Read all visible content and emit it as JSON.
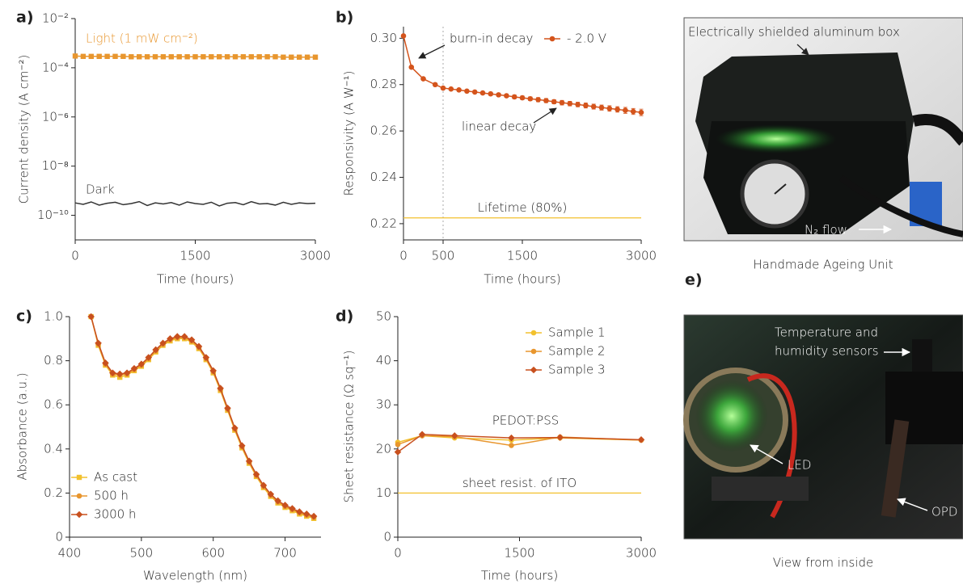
{
  "chart_data": [
    {
      "type": "line",
      "label": "a)",
      "xlabel": "Time (hours)",
      "ylabel": "Current density (A cm⁻²)",
      "ylog": true,
      "xlim": [
        0,
        3000
      ],
      "xticks": [
        0,
        1500,
        3000
      ],
      "ylim": [
        1e-11,
        0.01
      ],
      "yticks": [
        {
          "value": 0.01,
          "label": "10⁻²"
        },
        {
          "value": 0.0001,
          "label": "10⁻⁴"
        },
        {
          "value": 1e-06,
          "label": "10⁻⁶"
        },
        {
          "value": 1e-08,
          "label": "10⁻⁸"
        },
        {
          "value": 1e-10,
          "label": "10⁻¹⁰"
        }
      ],
      "x": [
        0,
        100,
        200,
        300,
        400,
        500,
        600,
        700,
        800,
        900,
        1000,
        1100,
        1200,
        1300,
        1400,
        1500,
        1600,
        1700,
        1800,
        1900,
        2000,
        2100,
        2200,
        2300,
        2400,
        2500,
        2600,
        2700,
        2800,
        2900,
        3000
      ],
      "series": [
        {
          "name": "Light (1 mW cm⁻²)",
          "color": "#e8962e",
          "marker": "square",
          "values": [
            0.0003,
            0.00029,
            0.00029,
            0.00029,
            0.00029,
            0.00029,
            0.00029,
            0.00028,
            0.00028,
            0.00028,
            0.00028,
            0.00028,
            0.00028,
            0.00028,
            0.00028,
            0.00028,
            0.00028,
            0.00028,
            0.00028,
            0.00028,
            0.00028,
            0.00028,
            0.00028,
            0.00028,
            0.00028,
            0.00028,
            0.00027,
            0.00027,
            0.00027,
            0.00027,
            0.00027
          ]
        },
        {
          "name": "Dark",
          "color": "#333333",
          "marker": "none",
          "values": [
            3.2e-10,
            2.8e-10,
            3.5e-10,
            2.6e-10,
            3.1e-10,
            3.4e-10,
            2.7e-10,
            3e-10,
            3.6e-10,
            2.5e-10,
            3.2e-10,
            2.9e-10,
            3.3e-10,
            2.6e-10,
            3.5e-10,
            3e-10,
            2.8e-10,
            3.4e-10,
            2.4e-10,
            3.1e-10,
            3.3e-10,
            2.7e-10,
            3.6e-10,
            2.9e-10,
            3e-10,
            2.6e-10,
            3.4e-10,
            2.8e-10,
            3.2e-10,
            3e-10,
            3.1e-10
          ]
        }
      ]
    },
    {
      "type": "line",
      "label": "b)",
      "xlabel": "Time (hours)",
      "ylabel": "Responsivity (A W⁻¹)",
      "legend": "upper right",
      "xlim": [
        0,
        3000
      ],
      "xticks": [
        0,
        500,
        1500,
        3000
      ],
      "ylim": [
        0.213,
        0.305
      ],
      "yticks": [
        0.22,
        0.24,
        0.26,
        0.28,
        {
          "value": 0.3,
          "label": "0.30"
        }
      ],
      "x": [
        0,
        100,
        250,
        400,
        500,
        600,
        700,
        800,
        900,
        1000,
        1100,
        1200,
        1300,
        1400,
        1500,
        1600,
        1700,
        1800,
        1900,
        2000,
        2100,
        2200,
        2300,
        2400,
        2500,
        2600,
        2700,
        2800,
        2900,
        3000
      ],
      "series": [
        {
          "name": "- 2.0 V",
          "color": "#d4541c",
          "marker": "circle",
          "values": [
            0.301,
            0.2875,
            0.2825,
            0.28,
            0.2785,
            0.2781,
            0.2777,
            0.2772,
            0.2768,
            0.2764,
            0.276,
            0.2756,
            0.2752,
            0.2747,
            0.2743,
            0.2739,
            0.2735,
            0.2731,
            0.2726,
            0.2722,
            0.2718,
            0.2714,
            0.271,
            0.2705,
            0.2701,
            0.2697,
            0.2693,
            0.2689,
            0.2684,
            0.268
          ],
          "errors": [
            0.0003,
            0.0003,
            0.0004,
            0.0004,
            0.0005,
            0.0005,
            0.0005,
            0.0006,
            0.0006,
            0.0006,
            0.0007,
            0.0007,
            0.0007,
            0.0008,
            0.0008,
            0.0008,
            0.0009,
            0.0009,
            0.0009,
            0.001,
            0.001,
            0.001,
            0.0011,
            0.0011,
            0.0011,
            0.0012,
            0.0012,
            0.0013,
            0.0013,
            0.0014
          ]
        }
      ],
      "vlines": [
        500
      ],
      "hlines": [
        {
          "value": 0.2225,
          "label": "Lifetime (80%)",
          "color": "#f2c12e"
        }
      ],
      "annotations": [
        {
          "text": "burn-in decay",
          "color": "#222222"
        },
        {
          "text": "linear decay",
          "color": "#222222"
        }
      ]
    },
    {
      "type": "line",
      "label": "c)",
      "xlabel": "Wavelength (nm)",
      "ylabel": "Absorbance (a.u.)",
      "legend": "lower left",
      "xlim": [
        400,
        750
      ],
      "xticks": [
        400,
        500,
        600,
        700
      ],
      "ylim": [
        0,
        1
      ],
      "yticks": [
        0,
        0.2,
        0.4,
        0.6,
        0.8,
        {
          "value": 1,
          "label": "1.0"
        }
      ],
      "x": [
        430,
        440,
        450,
        460,
        470,
        480,
        490,
        500,
        510,
        520,
        530,
        540,
        550,
        560,
        570,
        580,
        590,
        600,
        610,
        620,
        630,
        640,
        650,
        660,
        670,
        680,
        690,
        700,
        710,
        720,
        730,
        740
      ],
      "series": [
        {
          "name": "As cast",
          "color": "#f2c12e",
          "marker": "square",
          "values": [
            1.0,
            0.87,
            0.78,
            0.735,
            0.725,
            0.735,
            0.755,
            0.775,
            0.805,
            0.84,
            0.87,
            0.89,
            0.9,
            0.9,
            0.885,
            0.855,
            0.805,
            0.745,
            0.665,
            0.575,
            0.485,
            0.405,
            0.335,
            0.275,
            0.225,
            0.185,
            0.155,
            0.135,
            0.12,
            0.105,
            0.095,
            0.085
          ]
        },
        {
          "name": "500 h",
          "color": "#e8962e",
          "marker": "circle",
          "values": [
            1.0,
            0.875,
            0.785,
            0.74,
            0.735,
            0.74,
            0.76,
            0.78,
            0.81,
            0.845,
            0.875,
            0.895,
            0.905,
            0.905,
            0.89,
            0.86,
            0.81,
            0.75,
            0.67,
            0.58,
            0.49,
            0.41,
            0.34,
            0.28,
            0.23,
            0.19,
            0.16,
            0.14,
            0.125,
            0.11,
            0.1,
            0.09
          ]
        },
        {
          "name": "3000 h",
          "color": "#c8501e",
          "marker": "diamond",
          "values": [
            1.0,
            0.88,
            0.79,
            0.745,
            0.74,
            0.745,
            0.765,
            0.785,
            0.815,
            0.85,
            0.88,
            0.9,
            0.91,
            0.91,
            0.895,
            0.865,
            0.815,
            0.755,
            0.675,
            0.585,
            0.495,
            0.415,
            0.345,
            0.285,
            0.235,
            0.195,
            0.165,
            0.145,
            0.13,
            0.115,
            0.105,
            0.095
          ]
        }
      ]
    },
    {
      "type": "line",
      "label": "d)",
      "xlabel": "Time (hours)",
      "ylabel": "Sheet resistance (Ω sq⁻¹)",
      "legend": "upper right",
      "xlim": [
        0,
        3000
      ],
      "xticks": [
        0,
        1500,
        3000
      ],
      "ylim": [
        0,
        50
      ],
      "yticks": [
        0,
        10,
        20,
        30,
        40,
        50
      ],
      "x": [
        0,
        300,
        700,
        1400,
        2000,
        3000
      ],
      "series": [
        {
          "name": "Sample 1",
          "color": "#f2c12e",
          "marker": "circle",
          "values": [
            21.5,
            23,
            22.5,
            22,
            22.5,
            22
          ]
        },
        {
          "name": "Sample 2",
          "color": "#e8962e",
          "marker": "circle",
          "values": [
            21,
            23,
            22.8,
            20.8,
            22.7,
            22
          ]
        },
        {
          "name": "Sample 3",
          "color": "#c8501e",
          "marker": "diamond",
          "values": [
            19.3,
            23.3,
            23,
            22.5,
            22.6,
            22.1
          ]
        }
      ],
      "hlines": [
        {
          "value": 10,
          "label": "sheet resist. of ITO",
          "color": "#f2c12e"
        }
      ],
      "annotations": [
        {
          "text": "PEDOT:PSS",
          "color": "#222222"
        }
      ]
    }
  ],
  "photos": [
    {
      "texts": [
        "Electrically shielded aluminum box",
        "N₂ flow"
      ],
      "caption": "Handmade Ageing Unit"
    },
    {
      "label": "e)",
      "texts": [
        "Temperature and",
        "humidity sensors",
        "LED",
        "OPD"
      ],
      "caption": "View from inside"
    }
  ]
}
